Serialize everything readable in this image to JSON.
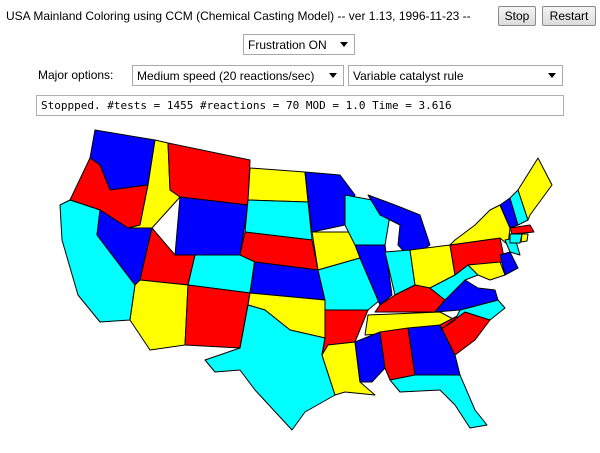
{
  "window": {
    "title": "USA Mainland Coloring using CCM (Chemical Casting Model) -- ver 1.13, 1996-11-23 --"
  },
  "toolbar": {
    "stop_label": "Stop",
    "restart_label": "Restart"
  },
  "options": {
    "frustration_value": "Frustration ON",
    "major_label": "Major options:",
    "speed_value": "Medium speed (20 reactions/sec)",
    "catalyst_value": "Variable catalyst rule"
  },
  "status": {
    "text": "Stoppped.  #tests = 1455  #reactions = 70  MOD = 1.0  Time = 3.616"
  },
  "colors": {
    "red": "#ff0000",
    "yellow": "#ffff00",
    "blue": "#0000ff",
    "cyan": "#00ffff"
  },
  "map": {
    "states": [
      {
        "id": "WA",
        "color": "blue"
      },
      {
        "id": "OR",
        "color": "red"
      },
      {
        "id": "CA",
        "color": "cyan"
      },
      {
        "id": "NV",
        "color": "blue"
      },
      {
        "id": "ID",
        "color": "yellow"
      },
      {
        "id": "MT",
        "color": "red"
      },
      {
        "id": "WY",
        "color": "blue"
      },
      {
        "id": "UT",
        "color": "red"
      },
      {
        "id": "AZ",
        "color": "yellow"
      },
      {
        "id": "CO",
        "color": "cyan"
      },
      {
        "id": "NM",
        "color": "red"
      },
      {
        "id": "ND",
        "color": "yellow"
      },
      {
        "id": "SD",
        "color": "cyan"
      },
      {
        "id": "NE",
        "color": "red"
      },
      {
        "id": "KS",
        "color": "blue"
      },
      {
        "id": "OK",
        "color": "yellow"
      },
      {
        "id": "TX",
        "color": "cyan"
      },
      {
        "id": "MN",
        "color": "blue"
      },
      {
        "id": "IA",
        "color": "yellow"
      },
      {
        "id": "MO",
        "color": "cyan"
      },
      {
        "id": "AR",
        "color": "red"
      },
      {
        "id": "LA",
        "color": "yellow"
      },
      {
        "id": "WI",
        "color": "cyan"
      },
      {
        "id": "IL",
        "color": "blue"
      },
      {
        "id": "MI",
        "color": "blue"
      },
      {
        "id": "IN",
        "color": "cyan"
      },
      {
        "id": "OH",
        "color": "yellow"
      },
      {
        "id": "KY",
        "color": "red"
      },
      {
        "id": "TN",
        "color": "yellow"
      },
      {
        "id": "MS",
        "color": "blue"
      },
      {
        "id": "AL",
        "color": "red"
      },
      {
        "id": "GA",
        "color": "blue"
      },
      {
        "id": "FL",
        "color": "cyan"
      },
      {
        "id": "SC",
        "color": "red"
      },
      {
        "id": "NC",
        "color": "cyan"
      },
      {
        "id": "VA",
        "color": "blue"
      },
      {
        "id": "WV",
        "color": "cyan"
      },
      {
        "id": "PA",
        "color": "red"
      },
      {
        "id": "NY",
        "color": "yellow"
      },
      {
        "id": "MD",
        "color": "yellow"
      },
      {
        "id": "DE",
        "color": "blue"
      },
      {
        "id": "NJ",
        "color": "cyan"
      },
      {
        "id": "VT",
        "color": "blue"
      },
      {
        "id": "NH",
        "color": "cyan"
      },
      {
        "id": "ME",
        "color": "yellow"
      },
      {
        "id": "MA",
        "color": "red"
      },
      {
        "id": "CT",
        "color": "cyan"
      },
      {
        "id": "RI",
        "color": "yellow"
      }
    ]
  }
}
